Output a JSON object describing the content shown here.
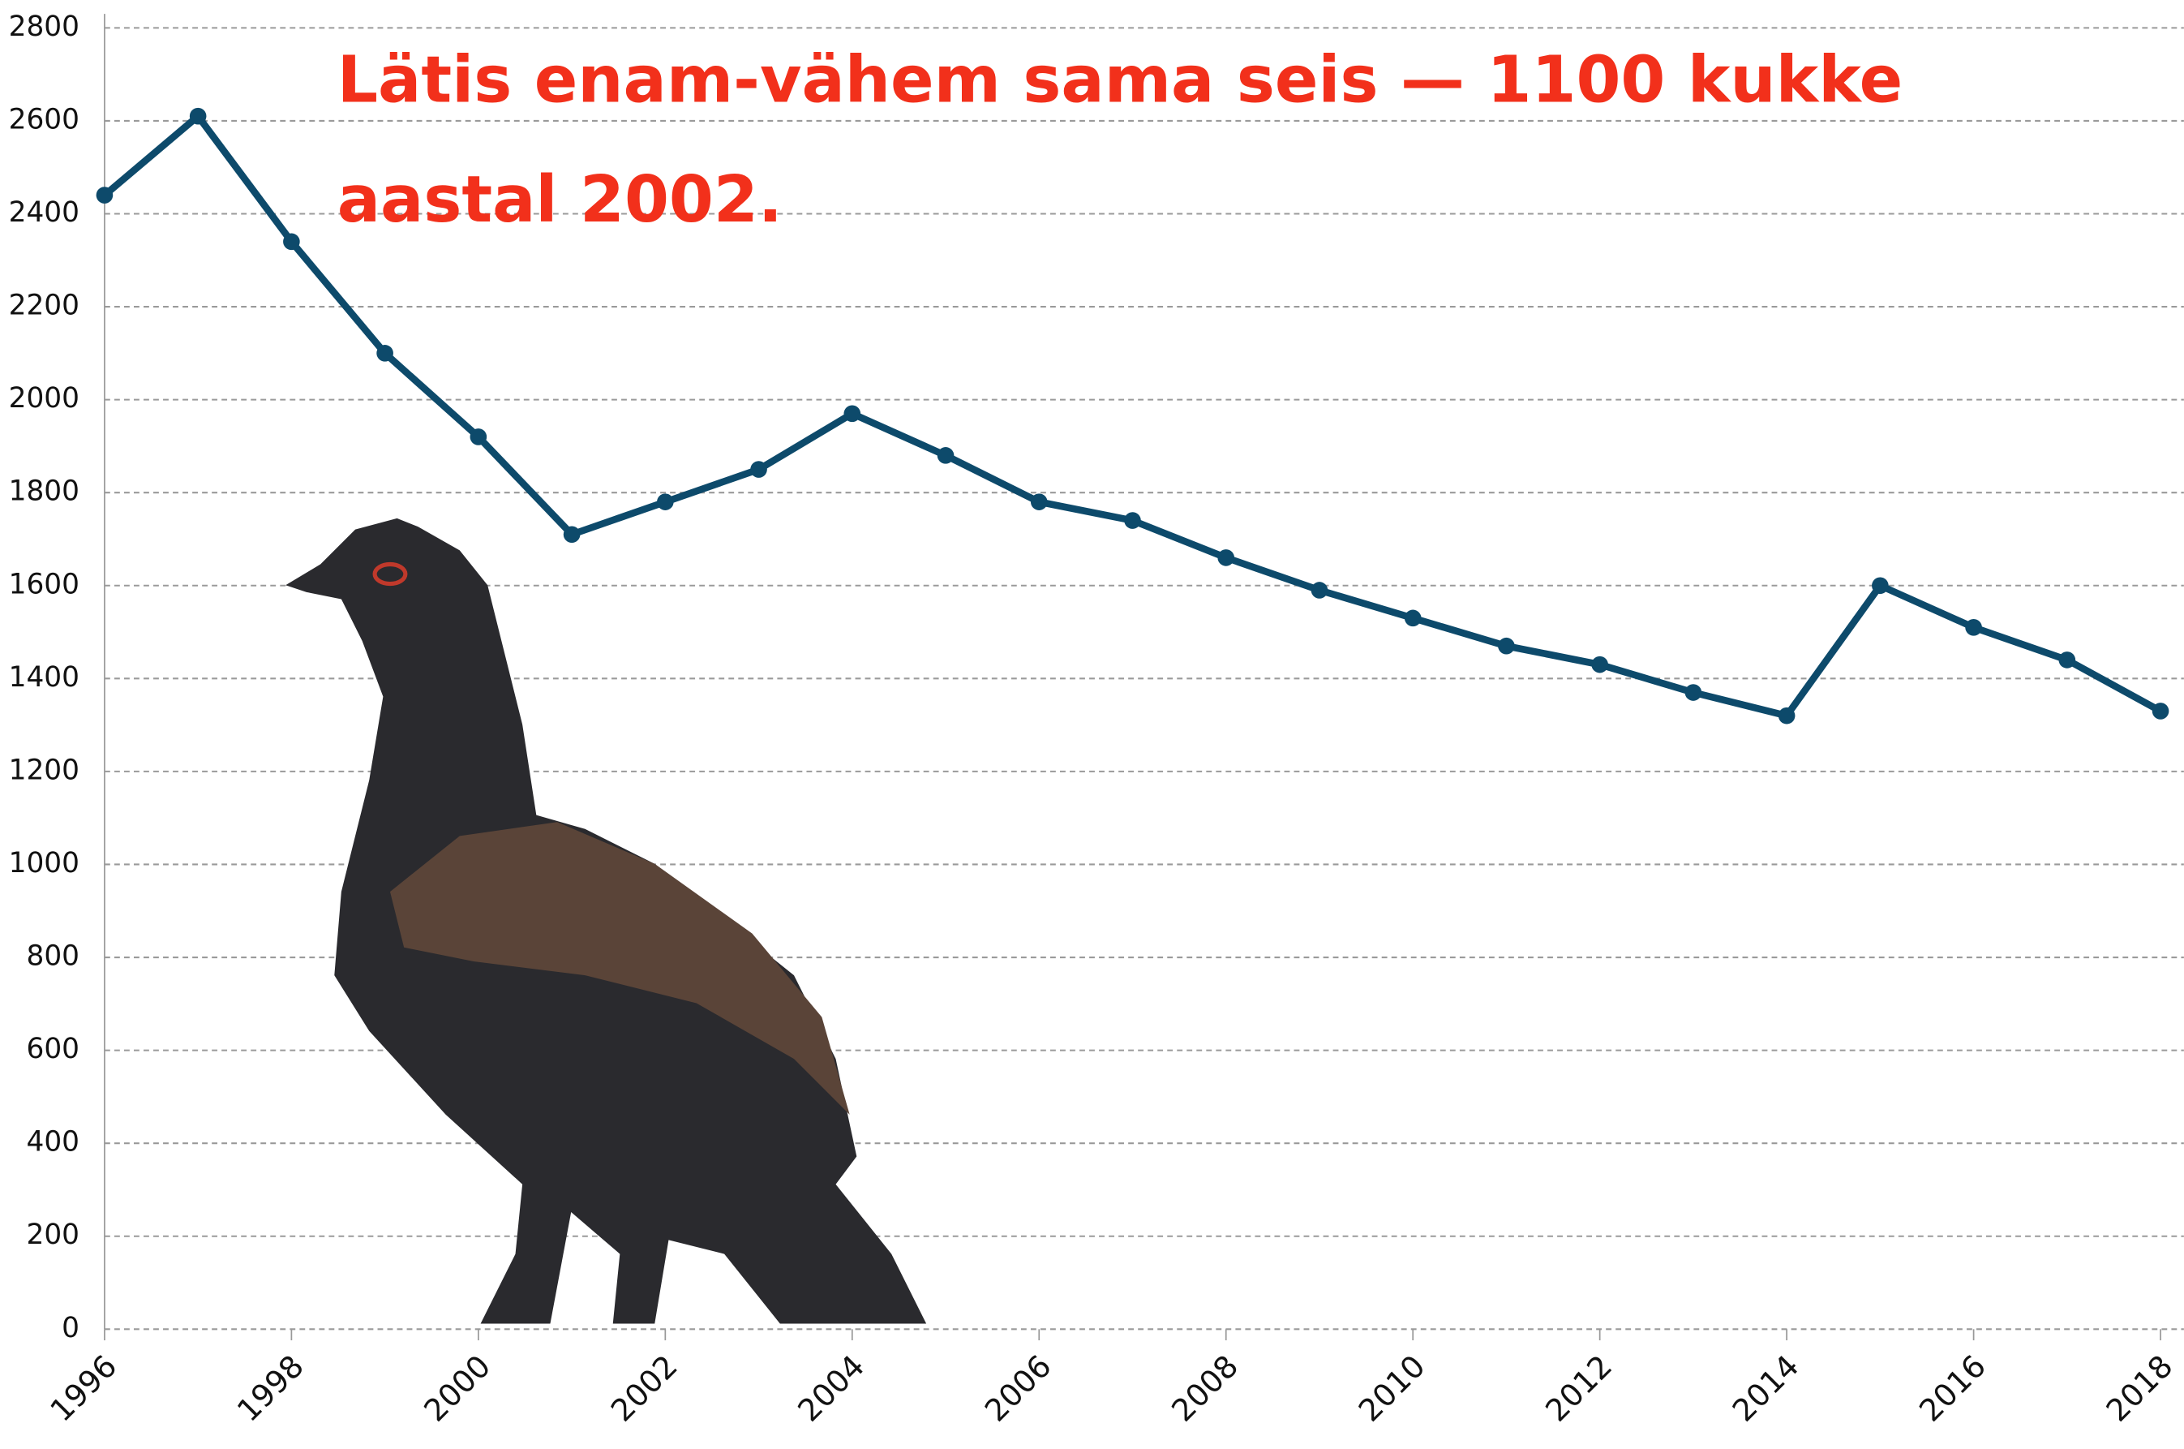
{
  "chart_data": {
    "type": "line",
    "annotation": "Lätis enam-vähem sama seis — 1100 kukke aastal 2002.",
    "x": [
      1996,
      1997,
      1998,
      1999,
      2000,
      2001,
      2002,
      2003,
      2004,
      2005,
      2006,
      2007,
      2008,
      2009,
      2010,
      2011,
      2012,
      2013,
      2014,
      2015,
      2016,
      2017,
      2018
    ],
    "series": [
      {
        "color": "#0d4a6b",
        "values": [
          2440,
          2610,
          2340,
          2100,
          1920,
          1710,
          1780,
          1850,
          1970,
          1880,
          1780,
          1740,
          1660,
          1590,
          1530,
          1470,
          1430,
          1370,
          1320,
          1600,
          1510,
          1440,
          1330
        ]
      }
    ],
    "xlim": [
      1996,
      2018.25
    ],
    "xticks": [
      1996,
      1998,
      2000,
      2002,
      2004,
      2006,
      2008,
      2010,
      2012,
      2014,
      2016,
      2018
    ],
    "ylim": [
      0,
      2800
    ],
    "yticks": [
      0,
      200,
      400,
      600,
      800,
      1000,
      1200,
      1400,
      1600,
      1800,
      2000,
      2200,
      2400,
      2600,
      2800
    ],
    "grid": true
  }
}
